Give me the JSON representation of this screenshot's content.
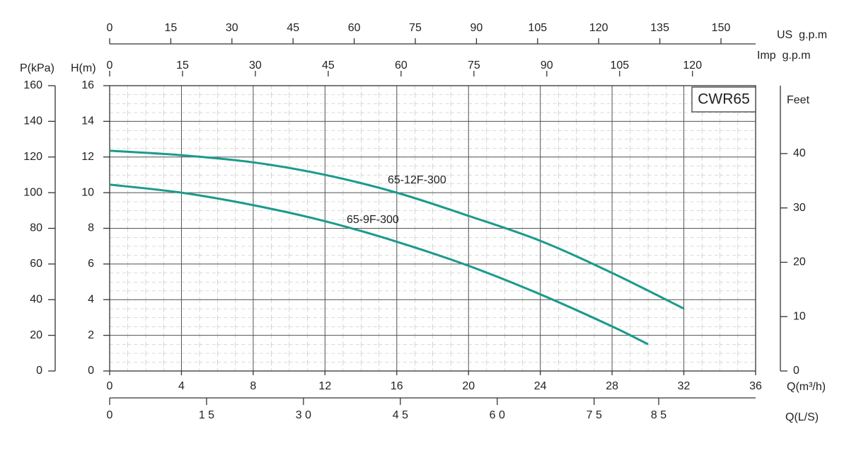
{
  "chart_data": {
    "type": "line",
    "annotation": "CWR65",
    "xlabel": "Q(m³/h)",
    "xlim": [
      0,
      36
    ],
    "xticks": [
      0,
      4,
      8,
      12,
      16,
      20,
      24,
      28,
      32,
      36
    ],
    "ylabel": "H(m)",
    "ylim": [
      0,
      16
    ],
    "yticks": [
      0,
      2,
      4,
      6,
      8,
      10,
      12,
      14,
      16
    ],
    "grid": true,
    "series": [
      {
        "name": "65-12F-300",
        "color": "#1b9a8c",
        "x": [
          0,
          4,
          8,
          12,
          16,
          20,
          24,
          28,
          32
        ],
        "values": [
          12.35,
          12.1,
          11.7,
          11.0,
          10.0,
          8.7,
          7.3,
          5.5,
          3.5
        ]
      },
      {
        "name": "65-9F-300",
        "color": "#1b9a8c",
        "x": [
          0,
          4,
          8,
          12,
          16,
          20,
          24,
          28,
          30
        ],
        "values": [
          10.45,
          10.0,
          9.3,
          8.4,
          7.25,
          5.9,
          4.3,
          2.5,
          1.5
        ]
      }
    ],
    "pressure_axis": {
      "label": "P(kPa)",
      "lim": [
        0,
        160
      ],
      "ticks": [
        0,
        20,
        40,
        60,
        80,
        100,
        120,
        140,
        160
      ]
    },
    "feet_axis": {
      "label": "Feet",
      "lim": [
        0,
        52.49
      ],
      "ticks": [
        0,
        10,
        20,
        30,
        40
      ]
    },
    "us_gpm_axis": {
      "label": "US  g.p.m",
      "lim": [
        0,
        158.5
      ],
      "ticks": [
        0,
        15,
        30,
        45,
        60,
        75,
        90,
        105,
        120,
        135,
        150
      ]
    },
    "imp_gpm_axis": {
      "label": "Imp  g.p.m",
      "lim": [
        0,
        133
      ],
      "ticks": [
        0,
        15,
        30,
        45,
        60,
        75,
        90,
        105,
        120
      ]
    },
    "ls_axis": {
      "label": "Q(L/S)",
      "lim": [
        0,
        10
      ],
      "ticks": [
        0,
        {
          "value": 1.5,
          "label": "1 5"
        },
        {
          "value": 3,
          "label": "3 0"
        },
        {
          "value": 4.5,
          "label": "4 5"
        },
        {
          "value": 6,
          "label": "6 0"
        },
        {
          "value": 7.5,
          "label": "7 5"
        },
        {
          "value": 8.5,
          "label": "8 5"
        }
      ]
    }
  }
}
